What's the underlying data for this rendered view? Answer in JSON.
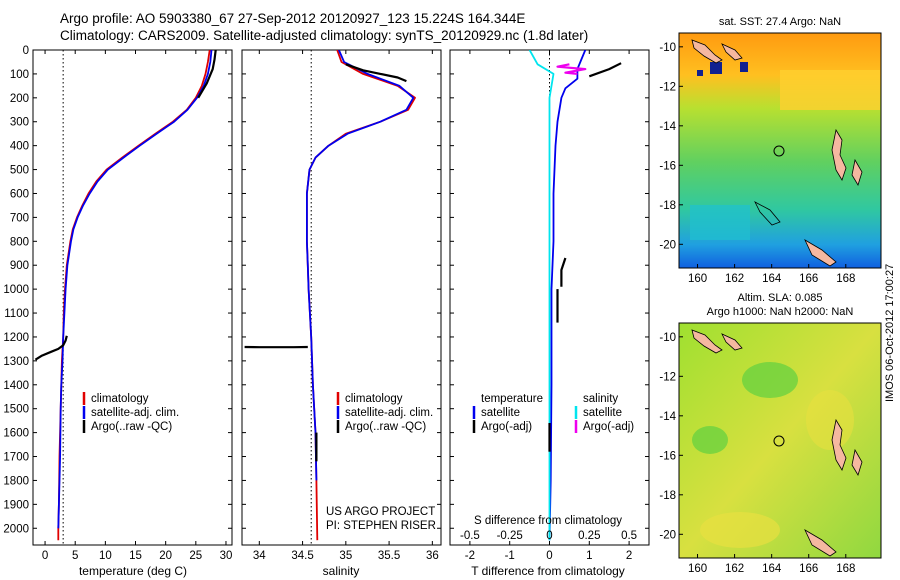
{
  "header": {
    "line1": "Argo profile: AO 5903380_67 27-Sep-2012 20120927_123 15.224S 164.344E",
    "line2": "Climatology: CARS2009. Satellite-adjusted climatology: synTS_20120929.nc (1.8d later)"
  },
  "stamp": "IMOS 06-Oct-2012 17:00:27",
  "colors": {
    "climatology": "#e00000",
    "satellite": "#0000ee",
    "argo": "#000000",
    "salinity_satellite": "#00e5ee",
    "salinity_argo": "#ee00ee"
  },
  "chart_data": [
    {
      "type": "line",
      "id": "temperature",
      "xlabel": "temperature (deg C)",
      "xlim": [
        -2,
        31
      ],
      "ylim": [
        2070,
        0
      ],
      "xticks": [
        "0",
        "5",
        "10",
        "15",
        "20",
        "25",
        "30"
      ],
      "yticks": [
        "0",
        "100",
        "200",
        "300",
        "400",
        "500",
        "600",
        "700",
        "800",
        "900",
        "1000",
        "1100",
        "1200",
        "1300",
        "1400",
        "1500",
        "1600",
        "1700",
        "1800",
        "1900",
        "2000"
      ],
      "reference_x": 3,
      "legend": [
        "climatology",
        "satellite-adj. clim.",
        "Argo(..raw -QC)"
      ],
      "series": [
        {
          "name": "climatology",
          "x": [
            27.3,
            27.0,
            26.6,
            26.0,
            25.0,
            23.5,
            21.2,
            18.3,
            15.5,
            12.8,
            10.2,
            8.5,
            7.2,
            6.2,
            5.3,
            4.6,
            4.2,
            3.9,
            3.6,
            3.3,
            3.1,
            3.0,
            2.8,
            2.7,
            2.6,
            2.4,
            2.3,
            2.2,
            2.2
          ],
          "y": [
            0,
            50,
            100,
            150,
            200,
            250,
            300,
            350,
            400,
            450,
            500,
            550,
            600,
            650,
            700,
            750,
            800,
            850,
            900,
            1000,
            1100,
            1200,
            1300,
            1400,
            1500,
            1700,
            1900,
            2000,
            2050
          ]
        },
        {
          "name": "satellite-adj. clim.",
          "x": [
            27.6,
            27.4,
            27.0,
            26.3,
            25.2,
            23.6,
            21.4,
            18.5,
            15.7,
            13.0,
            10.4,
            8.7,
            7.4,
            6.3,
            5.4,
            4.7,
            4.3,
            4.0,
            3.7,
            3.4,
            3.2,
            3.0,
            2.9,
            2.7,
            2.6,
            2.5,
            2.3,
            2.2
          ],
          "y": [
            0,
            50,
            100,
            150,
            200,
            250,
            300,
            350,
            400,
            450,
            500,
            550,
            600,
            650,
            700,
            750,
            800,
            850,
            900,
            1000,
            1100,
            1200,
            1300,
            1400,
            1500,
            1700,
            1900,
            2000
          ]
        },
        {
          "name": "Argo(..raw -QC)",
          "x": [
            28.3,
            28.1,
            27.8,
            26.8,
            25.4
          ],
          "y": [
            0,
            40,
            80,
            140,
            200
          ]
        },
        {
          "name": "Argo(..raw -QC)",
          "x": [
            3.6,
            3.4,
            3.0,
            2.2,
            1.0,
            -0.5,
            -1.6
          ],
          "y": [
            1195,
            1215,
            1235,
            1250,
            1262,
            1278,
            1295
          ]
        }
      ]
    },
    {
      "type": "line",
      "id": "salinity",
      "xlabel": "salinity",
      "xlim": [
        33.8,
        36.1
      ],
      "ylim": [
        2070,
        0
      ],
      "xticks": [
        "34",
        "34.5",
        "35",
        "35.5",
        "36"
      ],
      "reference_x": 34.6,
      "legend": [
        "climatology",
        "satellite-adj. clim.",
        "Argo(..raw -QC)"
      ],
      "annotation": [
        "US ARGO PROJECT",
        "PI: STEPHEN RISER"
      ],
      "series": [
        {
          "name": "climatology",
          "x": [
            34.9,
            34.95,
            35.2,
            35.6,
            35.8,
            35.72,
            35.4,
            35.0,
            34.8,
            34.65,
            34.58,
            34.55,
            34.55,
            34.55,
            34.56,
            34.57,
            34.6,
            34.62,
            34.65,
            34.66,
            34.67
          ],
          "y": [
            0,
            50,
            100,
            150,
            200,
            250,
            300,
            350,
            400,
            450,
            500,
            600,
            700,
            800,
            900,
            1000,
            1200,
            1400,
            1600,
            1800,
            2050
          ]
        },
        {
          "name": "satellite-adj. clim.",
          "x": [
            34.92,
            34.98,
            35.25,
            35.62,
            35.78,
            35.7,
            35.4,
            35.02,
            34.8,
            34.65,
            34.58,
            34.55,
            34.55,
            34.55,
            34.56,
            34.57,
            34.6,
            34.62,
            34.65,
            34.66
          ],
          "y": [
            0,
            50,
            100,
            150,
            200,
            250,
            300,
            350,
            400,
            450,
            500,
            600,
            700,
            800,
            900,
            1000,
            1200,
            1400,
            1600,
            1800
          ]
        },
        {
          "name": "Argo(..raw -QC)",
          "x": [
            35.0,
            35.2,
            35.4,
            35.6,
            35.7
          ],
          "y": [
            60,
            85,
            100,
            115,
            130
          ]
        },
        {
          "name": "Argo(..raw -QC)",
          "x": [
            33.83,
            34.0,
            34.2,
            34.4,
            34.56
          ],
          "y": [
            1242,
            1243,
            1243,
            1243,
            1242
          ]
        },
        {
          "name": "Argo(..raw -QC)",
          "x": [
            34.66,
            34.66
          ],
          "y": [
            1600,
            1720
          ]
        }
      ]
    },
    {
      "type": "line",
      "id": "difference",
      "xlabel": "T difference from climatology",
      "xlabel_top": "S difference from climatology",
      "xlim": [
        -2.5,
        2.5
      ],
      "ylim": [
        2070,
        0
      ],
      "xticks": [
        "-2",
        "-1",
        "0",
        "1",
        "2"
      ],
      "s_ticks": [
        "-0.5",
        "-0.25",
        "0",
        "0.25",
        "0.5"
      ],
      "legend_groups": [
        {
          "title": "temperature",
          "items": [
            "satellite",
            "Argo(-adj)"
          ]
        },
        {
          "title": "salinity",
          "items": [
            "satellite",
            "Argo(-adj)"
          ]
        }
      ],
      "series": [
        {
          "name": "temperature satellite",
          "x": [
            0.9,
            0.8,
            0.7,
            0.7,
            0.4,
            0.3,
            0.2,
            0.15,
            0.1,
            0.1,
            0.05,
            0.05,
            0.03,
            0.0
          ],
          "y": [
            0,
            40,
            80,
            120,
            160,
            200,
            300,
            400,
            600,
            800,
            1000,
            1400,
            1800,
            2050
          ]
        },
        {
          "name": "salinity satellite",
          "x": [
            -0.5,
            -0.3,
            0.1,
            0.05,
            0.0,
            0.0,
            0.0,
            0.0,
            0.0,
            0.0
          ],
          "y": [
            0,
            60,
            100,
            150,
            200,
            400,
            800,
            1200,
            1600,
            2050
          ]
        },
        {
          "name": "temperature Argo(-adj)",
          "x": [
            1.8,
            1.5,
            1.0
          ],
          "y": [
            55,
            80,
            110
          ]
        },
        {
          "name": "temperature Argo(-adj)",
          "x": [
            0.4,
            0.3,
            0.3
          ],
          "y": [
            870,
            920,
            990
          ]
        },
        {
          "name": "temperature Argo(-adj)",
          "x": [
            0.2,
            0.2
          ],
          "y": [
            1000,
            1140
          ]
        },
        {
          "name": "temperature Argo(-adj)",
          "x": [
            0.0,
            0.0
          ],
          "y": [
            1560,
            1680
          ]
        },
        {
          "name": "salinity Argo(-adj)",
          "x": [
            0.5,
            0.2,
            0.9,
            0.4,
            0.7
          ],
          "y": [
            60,
            70,
            80,
            95,
            100
          ]
        }
      ]
    },
    {
      "type": "heatmap",
      "id": "sst_map",
      "title": "sat. SST: 27.4  Argo: NaN",
      "xticks": [
        "160",
        "162",
        "164",
        "166",
        "168"
      ],
      "yticks": [
        "-10",
        "-12",
        "-14",
        "-16",
        "-18",
        "-20"
      ],
      "marker": [
        164.3,
        -15.2
      ]
    },
    {
      "type": "heatmap",
      "id": "sla_map",
      "title_line1": "Altim. SLA: 0.085",
      "title_line2": "Argo h1000: NaN  h2000: NaN",
      "xticks": [
        "160",
        "162",
        "164",
        "166",
        "168"
      ],
      "yticks": [
        "-10",
        "-12",
        "-14",
        "-16",
        "-18",
        "-20"
      ],
      "marker": [
        164.3,
        -15.2
      ]
    }
  ]
}
